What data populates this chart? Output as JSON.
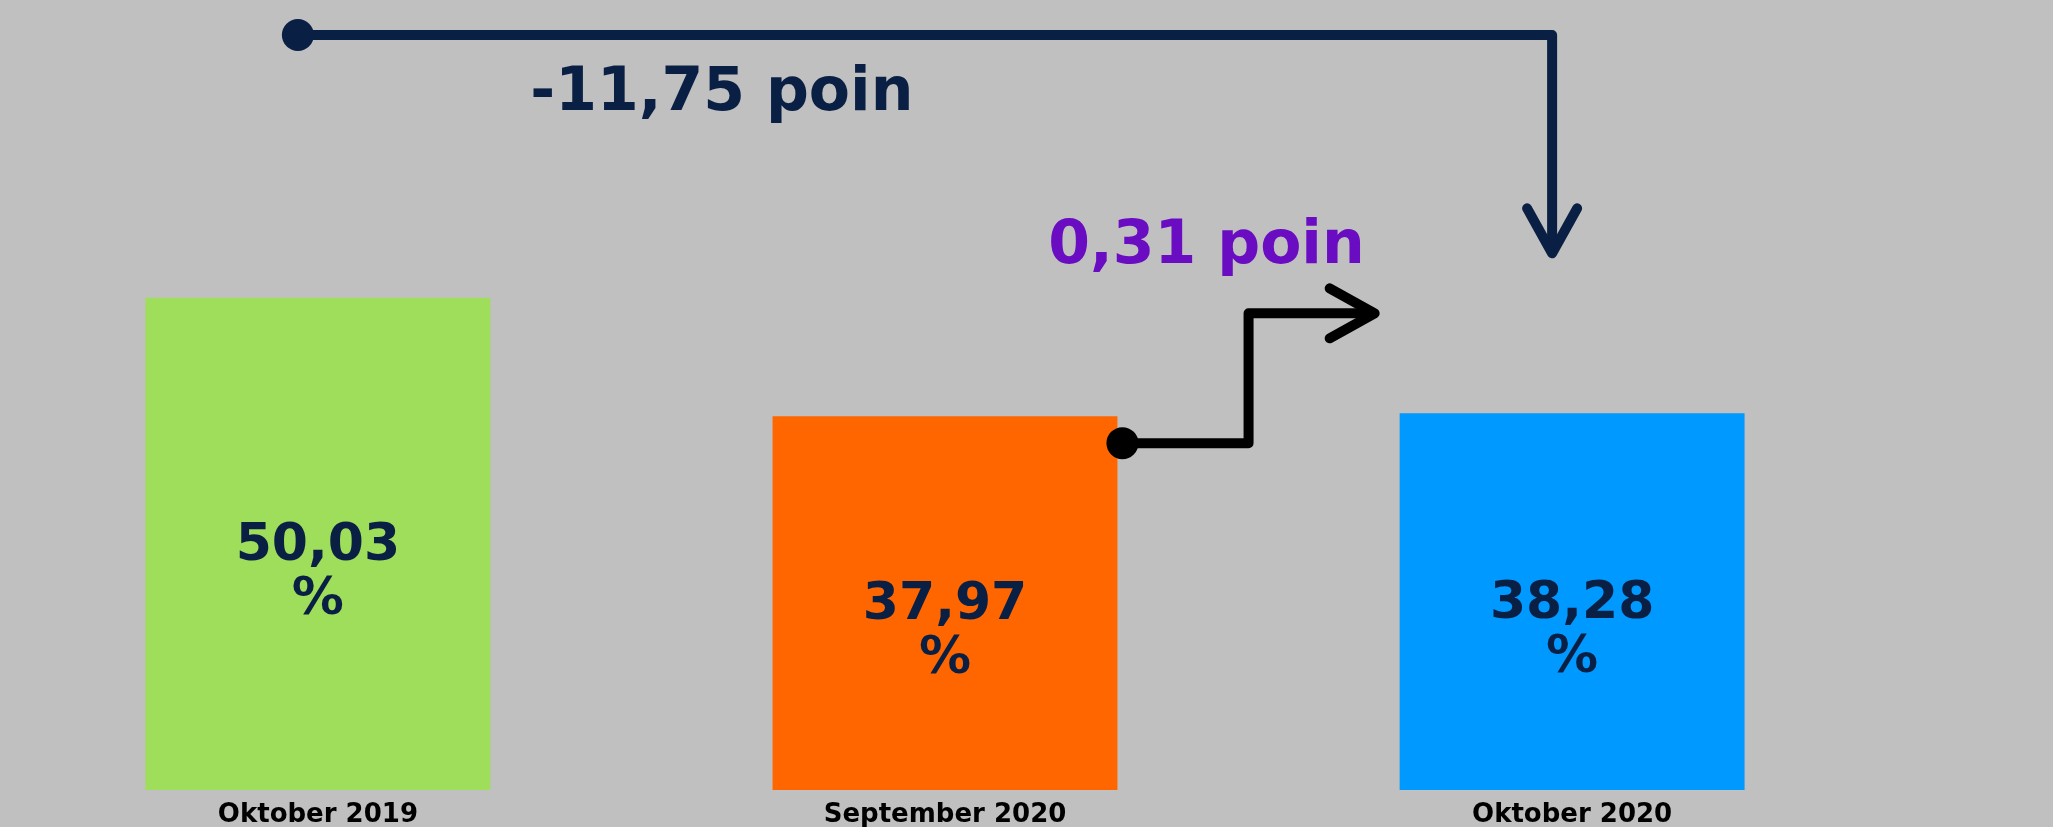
{
  "chart_data": {
    "type": "bar",
    "categories": [
      "Oktober 2019",
      "September 2020",
      "Oktober 2020"
    ],
    "values": [
      50.03,
      37.97,
      38.28
    ],
    "colors": [
      "#9ede5a",
      "#ff6600",
      "#0099ff"
    ],
    "value_labels": [
      "50,03 %",
      "37,97 %",
      "38,28 %"
    ],
    "annotations": [
      "-11,75 poin",
      "0,31 poin"
    ]
  }
}
